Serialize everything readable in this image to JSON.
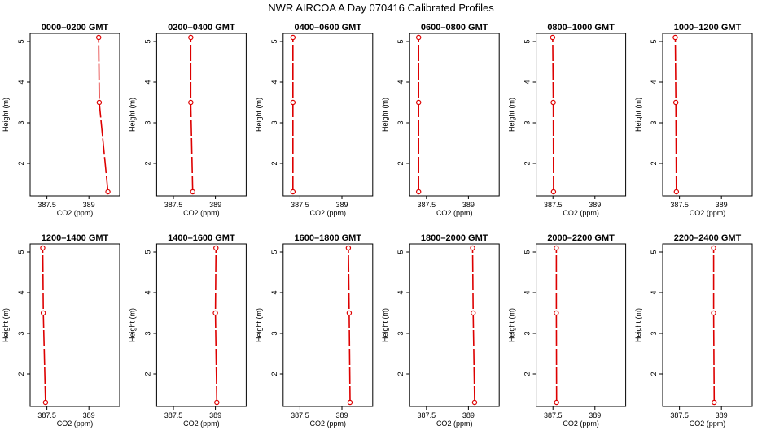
{
  "title": "NWR AIRCOA A  Day 070416  Calibrated Profiles",
  "chart_data": {
    "type": "line",
    "orientation": "profile",
    "xlabel": "CO2 (ppm)",
    "ylabel": "Height (m)",
    "xlim": [
      386.9,
      390.1
    ],
    "ylim": [
      1.2,
      5.2
    ],
    "xticks": [
      387.5,
      389.0
    ],
    "yticks": [
      2,
      3,
      4,
      5
    ],
    "marker_color": "#dd0000",
    "panels": [
      {
        "title": "0000–0200 GMT",
        "points": [
          [
            389.68,
            1.3
          ],
          [
            389.37,
            3.5
          ],
          [
            389.35,
            5.1
          ]
        ]
      },
      {
        "title": "0200–0400 GMT",
        "points": [
          [
            388.19,
            1.3
          ],
          [
            388.12,
            3.5
          ],
          [
            388.12,
            5.1
          ]
        ]
      },
      {
        "title": "0400–0600 GMT",
        "points": [
          [
            387.25,
            1.3
          ],
          [
            387.25,
            3.5
          ],
          [
            387.25,
            5.1
          ]
        ]
      },
      {
        "title": "0600–0800 GMT",
        "points": [
          [
            387.22,
            1.3
          ],
          [
            387.22,
            3.5
          ],
          [
            387.22,
            5.1
          ]
        ]
      },
      {
        "title": "0800–1000 GMT",
        "points": [
          [
            387.52,
            1.3
          ],
          [
            387.51,
            3.5
          ],
          [
            387.49,
            5.1
          ]
        ]
      },
      {
        "title": "1000–1200 GMT",
        "points": [
          [
            387.39,
            1.3
          ],
          [
            387.37,
            3.5
          ],
          [
            387.35,
            5.1
          ]
        ]
      },
      {
        "title": "1200–1400 GMT",
        "points": [
          [
            387.45,
            1.3
          ],
          [
            387.37,
            3.5
          ],
          [
            387.35,
            5.1
          ]
        ]
      },
      {
        "title": "1400–1600 GMT",
        "points": [
          [
            389.05,
            1.3
          ],
          [
            389.0,
            3.5
          ],
          [
            389.02,
            5.1
          ]
        ]
      },
      {
        "title": "1600–1800 GMT",
        "points": [
          [
            389.29,
            1.3
          ],
          [
            389.26,
            3.5
          ],
          [
            389.23,
            5.1
          ]
        ]
      },
      {
        "title": "1800–2000 GMT",
        "points": [
          [
            389.22,
            1.3
          ],
          [
            389.17,
            3.5
          ],
          [
            389.15,
            5.1
          ]
        ]
      },
      {
        "title": "2000–2200 GMT",
        "points": [
          [
            387.63,
            1.3
          ],
          [
            387.62,
            3.5
          ],
          [
            387.62,
            5.1
          ]
        ]
      },
      {
        "title": "2200–2400 GMT",
        "points": [
          [
            388.74,
            1.3
          ],
          [
            388.72,
            3.5
          ],
          [
            388.72,
            5.1
          ]
        ]
      }
    ]
  }
}
